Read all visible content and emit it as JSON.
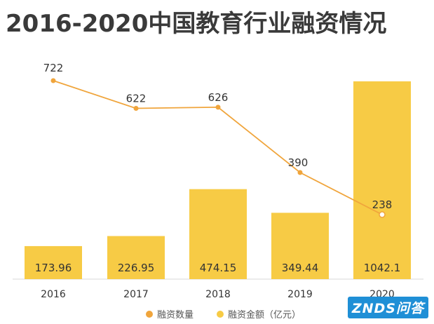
{
  "chart_data": {
    "type": "bar",
    "title": "2016-2020中国教育行业融资情况",
    "categories": [
      "2016",
      "2017",
      "2018",
      "2019",
      "2020"
    ],
    "series": [
      {
        "name": "融资数量",
        "type": "line",
        "color": "#f0a53c",
        "values": [
          722,
          622,
          626,
          390,
          238
        ],
        "labels": [
          "722",
          "622",
          "626",
          "390",
          "238"
        ]
      },
      {
        "name": "融资金额（亿元）",
        "type": "bar",
        "color": "#f7cb45",
        "values": [
          173.96,
          226.95,
          474.15,
          349.44,
          1042.1
        ],
        "labels": [
          "173.96",
          "226.95",
          "474.15",
          "349.44",
          "1042.1"
        ]
      }
    ],
    "legend_position": "bottom",
    "grid": false
  },
  "watermark": {
    "text": "ZNDS问答"
  }
}
